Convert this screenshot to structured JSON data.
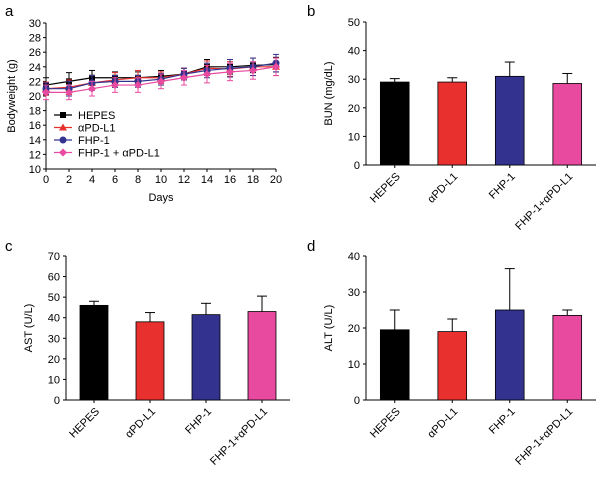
{
  "chart_data": [
    {
      "panel": "a",
      "type": "line",
      "xlabel": "Days",
      "ylabel": "Bodyweight (g)",
      "xlim": [
        0,
        20
      ],
      "ylim": [
        10,
        30
      ],
      "xticks": [
        0,
        2,
        4,
        6,
        8,
        10,
        12,
        14,
        16,
        18,
        20
      ],
      "yticks": [
        10,
        12,
        14,
        16,
        18,
        20,
        22,
        24,
        26,
        28,
        30
      ],
      "legend": "bottom-left",
      "x": [
        0,
        2,
        4,
        6,
        8,
        10,
        12,
        14,
        16,
        18,
        20
      ],
      "series": [
        {
          "name": "HEPES",
          "color": "#000000",
          "marker": "square",
          "values": [
            21.5,
            22.0,
            22.5,
            22.5,
            22.5,
            22.7,
            23.0,
            24.0,
            24.0,
            24.2,
            24.3
          ],
          "errors": [
            1.0,
            1.2,
            1.0,
            0.8,
            0.8,
            0.8,
            0.8,
            1.0,
            1.0,
            1.0,
            1.0
          ]
        },
        {
          "name": "αPD-L1",
          "color": "#e8312f",
          "marker": "triangle",
          "values": [
            21.0,
            21.2,
            21.8,
            22.2,
            22.5,
            22.5,
            23.0,
            23.8,
            23.7,
            24.0,
            24.0
          ],
          "errors": [
            0.9,
            1.0,
            1.0,
            1.0,
            1.0,
            0.8,
            0.8,
            1.0,
            1.0,
            1.2,
            1.2
          ]
        },
        {
          "name": "FHP-1",
          "color": "#33338f",
          "marker": "circle",
          "values": [
            21.0,
            21.0,
            21.8,
            22.0,
            22.0,
            22.3,
            23.0,
            23.5,
            23.8,
            24.0,
            24.5
          ],
          "errors": [
            0.8,
            1.0,
            1.0,
            0.8,
            0.8,
            0.8,
            0.8,
            1.0,
            1.2,
            1.2,
            1.2
          ]
        },
        {
          "name": "FHP-1 + αPD-L1",
          "color": "#e84a9f",
          "marker": "diamond",
          "values": [
            20.5,
            20.5,
            21.0,
            21.5,
            21.5,
            22.0,
            22.5,
            23.0,
            23.3,
            23.5,
            24.0
          ],
          "errors": [
            1.0,
            1.0,
            1.0,
            1.0,
            1.0,
            1.0,
            1.0,
            1.2,
            1.2,
            1.2,
            1.2
          ]
        }
      ]
    },
    {
      "panel": "b",
      "type": "bar",
      "ylabel": "BUN (mg/dL)",
      "ylim": [
        0,
        50
      ],
      "yticks": [
        0,
        10,
        20,
        30,
        40,
        50
      ],
      "categories": [
        "HEPES",
        "αPD-L1",
        "FHP-1",
        "FHP-1+αPD-L1"
      ],
      "values": [
        29,
        29,
        31,
        28.5
      ],
      "errors": [
        1.2,
        1.5,
        5.0,
        3.5
      ],
      "colors": [
        "#000000",
        "#e8312f",
        "#33338f",
        "#e84a9f"
      ]
    },
    {
      "panel": "c",
      "type": "bar",
      "ylabel": "AST (U/L)",
      "ylim": [
        0,
        70
      ],
      "yticks": [
        0,
        10,
        20,
        30,
        40,
        50,
        60,
        70
      ],
      "categories": [
        "HEPES",
        "αPD-L1",
        "FHP-1",
        "FHP-1+αPD-L1"
      ],
      "values": [
        46,
        38,
        41.5,
        43
      ],
      "errors": [
        2.0,
        4.5,
        5.5,
        7.5
      ],
      "colors": [
        "#000000",
        "#e8312f",
        "#33338f",
        "#e84a9f"
      ]
    },
    {
      "panel": "d",
      "type": "bar",
      "ylabel": "ALT (U/L)",
      "ylim": [
        0,
        40
      ],
      "yticks": [
        0,
        10,
        20,
        30,
        40
      ],
      "categories": [
        "HEPES",
        "αPD-L1",
        "FHP-1",
        "FHP-1+αPD-L1"
      ],
      "values": [
        19.5,
        19,
        25,
        23.5
      ],
      "errors": [
        5.5,
        3.5,
        11.5,
        1.5
      ],
      "colors": [
        "#000000",
        "#e8312f",
        "#33338f",
        "#e84a9f"
      ]
    }
  ]
}
